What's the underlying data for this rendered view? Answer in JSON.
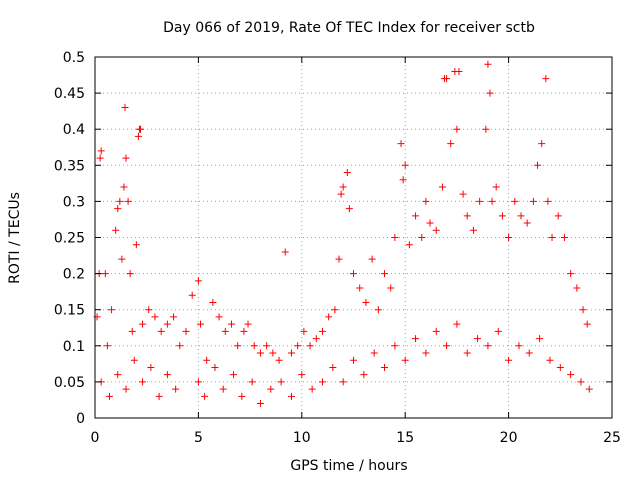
{
  "chart_data": {
    "type": "scatter",
    "title": "Day 066 of 2019, Rate Of TEC Index for receiver sctb",
    "xlabel": "GPS time / hours",
    "ylabel": "ROTI / TECUs",
    "xlim": [
      0,
      25
    ],
    "ylim": [
      0,
      0.5
    ],
    "xticks": [
      0,
      5,
      10,
      15,
      20,
      25
    ],
    "xtick_labels": [
      "0",
      "5",
      "10",
      "15",
      "20",
      "25"
    ],
    "yticks": [
      0,
      0.05,
      0.1,
      0.15,
      0.2,
      0.25,
      0.3,
      0.35,
      0.4,
      0.45,
      0.5
    ],
    "ytick_labels": [
      "0",
      "0.05",
      "0.1",
      "0.15",
      "0.2",
      "0.25",
      "0.3",
      "0.35",
      "0.4",
      "0.45",
      "0.5"
    ],
    "grid": true,
    "marker": "plus",
    "series_color": "#ff0000",
    "series": [
      {
        "name": "ROTI",
        "points": [
          [
            0.1,
            0.14
          ],
          [
            0.2,
            0.2
          ],
          [
            0.25,
            0.36
          ],
          [
            0.3,
            0.37
          ],
          [
            0.5,
            0.2
          ],
          [
            0.6,
            0.1
          ],
          [
            0.8,
            0.15
          ],
          [
            1.0,
            0.26
          ],
          [
            1.1,
            0.29
          ],
          [
            1.2,
            0.3
          ],
          [
            1.3,
            0.22
          ],
          [
            1.4,
            0.32
          ],
          [
            1.45,
            0.43
          ],
          [
            1.5,
            0.36
          ],
          [
            1.6,
            0.3
          ],
          [
            1.7,
            0.2
          ],
          [
            1.8,
            0.12
          ],
          [
            2.0,
            0.24
          ],
          [
            2.1,
            0.39
          ],
          [
            2.15,
            0.4
          ],
          [
            2.2,
            0.4
          ],
          [
            2.3,
            0.13
          ],
          [
            2.6,
            0.15
          ],
          [
            2.9,
            0.14
          ],
          [
            3.2,
            0.12
          ],
          [
            3.5,
            0.13
          ],
          [
            3.8,
            0.14
          ],
          [
            4.1,
            0.1
          ],
          [
            4.4,
            0.12
          ],
          [
            4.7,
            0.17
          ],
          [
            5.0,
            0.19
          ],
          [
            5.1,
            0.13
          ],
          [
            5.4,
            0.08
          ],
          [
            5.7,
            0.16
          ],
          [
            6.0,
            0.14
          ],
          [
            6.3,
            0.12
          ],
          [
            6.6,
            0.13
          ],
          [
            6.9,
            0.1
          ],
          [
            7.2,
            0.12
          ],
          [
            7.4,
            0.13
          ],
          [
            7.7,
            0.1
          ],
          [
            8.0,
            0.09
          ],
          [
            8.3,
            0.1
          ],
          [
            8.6,
            0.09
          ],
          [
            8.9,
            0.08
          ],
          [
            9.2,
            0.23
          ],
          [
            9.5,
            0.09
          ],
          [
            9.8,
            0.1
          ],
          [
            10.1,
            0.12
          ],
          [
            10.4,
            0.1
          ],
          [
            10.7,
            0.11
          ],
          [
            11.0,
            0.12
          ],
          [
            11.3,
            0.14
          ],
          [
            11.6,
            0.15
          ],
          [
            11.8,
            0.22
          ],
          [
            11.9,
            0.31
          ],
          [
            12.0,
            0.32
          ],
          [
            12.2,
            0.34
          ],
          [
            12.3,
            0.29
          ],
          [
            12.5,
            0.2
          ],
          [
            12.8,
            0.18
          ],
          [
            13.1,
            0.16
          ],
          [
            13.4,
            0.22
          ],
          [
            13.7,
            0.15
          ],
          [
            14.0,
            0.2
          ],
          [
            14.3,
            0.18
          ],
          [
            14.5,
            0.25
          ],
          [
            14.8,
            0.38
          ],
          [
            14.9,
            0.33
          ],
          [
            15.0,
            0.35
          ],
          [
            15.2,
            0.24
          ],
          [
            15.5,
            0.28
          ],
          [
            15.8,
            0.25
          ],
          [
            16.0,
            0.3
          ],
          [
            16.2,
            0.27
          ],
          [
            16.5,
            0.26
          ],
          [
            16.8,
            0.32
          ],
          [
            16.9,
            0.47
          ],
          [
            17.0,
            0.47
          ],
          [
            17.2,
            0.38
          ],
          [
            17.4,
            0.48
          ],
          [
            17.5,
            0.4
          ],
          [
            17.6,
            0.48
          ],
          [
            17.8,
            0.31
          ],
          [
            18.0,
            0.28
          ],
          [
            18.3,
            0.26
          ],
          [
            18.6,
            0.3
          ],
          [
            18.9,
            0.4
          ],
          [
            19.0,
            0.49
          ],
          [
            19.1,
            0.45
          ],
          [
            19.2,
            0.3
          ],
          [
            19.4,
            0.32
          ],
          [
            19.7,
            0.28
          ],
          [
            20.0,
            0.25
          ],
          [
            20.3,
            0.3
          ],
          [
            20.6,
            0.28
          ],
          [
            20.9,
            0.27
          ],
          [
            21.2,
            0.3
          ],
          [
            21.4,
            0.35
          ],
          [
            21.6,
            0.38
          ],
          [
            21.8,
            0.47
          ],
          [
            21.9,
            0.3
          ],
          [
            22.1,
            0.25
          ],
          [
            22.4,
            0.28
          ],
          [
            22.7,
            0.25
          ],
          [
            23.0,
            0.2
          ],
          [
            23.3,
            0.18
          ],
          [
            23.6,
            0.15
          ],
          [
            23.8,
            0.13
          ],
          [
            0.3,
            0.05
          ],
          [
            0.7,
            0.03
          ],
          [
            1.1,
            0.06
          ],
          [
            1.5,
            0.04
          ],
          [
            1.9,
            0.08
          ],
          [
            2.3,
            0.05
          ],
          [
            2.7,
            0.07
          ],
          [
            3.1,
            0.03
          ],
          [
            3.5,
            0.06
          ],
          [
            3.9,
            0.04
          ],
          [
            5.0,
            0.05
          ],
          [
            5.3,
            0.03
          ],
          [
            5.8,
            0.07
          ],
          [
            6.2,
            0.04
          ],
          [
            6.7,
            0.06
          ],
          [
            7.1,
            0.03
          ],
          [
            7.6,
            0.05
          ],
          [
            8.0,
            0.02
          ],
          [
            8.5,
            0.04
          ],
          [
            9.0,
            0.05
          ],
          [
            9.5,
            0.03
          ],
          [
            10.0,
            0.06
          ],
          [
            10.5,
            0.04
          ],
          [
            11.0,
            0.05
          ],
          [
            11.5,
            0.07
          ],
          [
            12.0,
            0.05
          ],
          [
            12.5,
            0.08
          ],
          [
            13.0,
            0.06
          ],
          [
            13.5,
            0.09
          ],
          [
            14.0,
            0.07
          ],
          [
            14.5,
            0.1
          ],
          [
            15.0,
            0.08
          ],
          [
            15.5,
            0.11
          ],
          [
            16.0,
            0.09
          ],
          [
            16.5,
            0.12
          ],
          [
            17.0,
            0.1
          ],
          [
            17.5,
            0.13
          ],
          [
            18.0,
            0.09
          ],
          [
            18.5,
            0.11
          ],
          [
            19.0,
            0.1
          ],
          [
            19.5,
            0.12
          ],
          [
            20.0,
            0.08
          ],
          [
            20.5,
            0.1
          ],
          [
            21.0,
            0.09
          ],
          [
            21.5,
            0.11
          ],
          [
            22.0,
            0.08
          ],
          [
            22.5,
            0.07
          ],
          [
            23.0,
            0.06
          ],
          [
            23.5,
            0.05
          ],
          [
            23.9,
            0.04
          ]
        ]
      }
    ]
  }
}
